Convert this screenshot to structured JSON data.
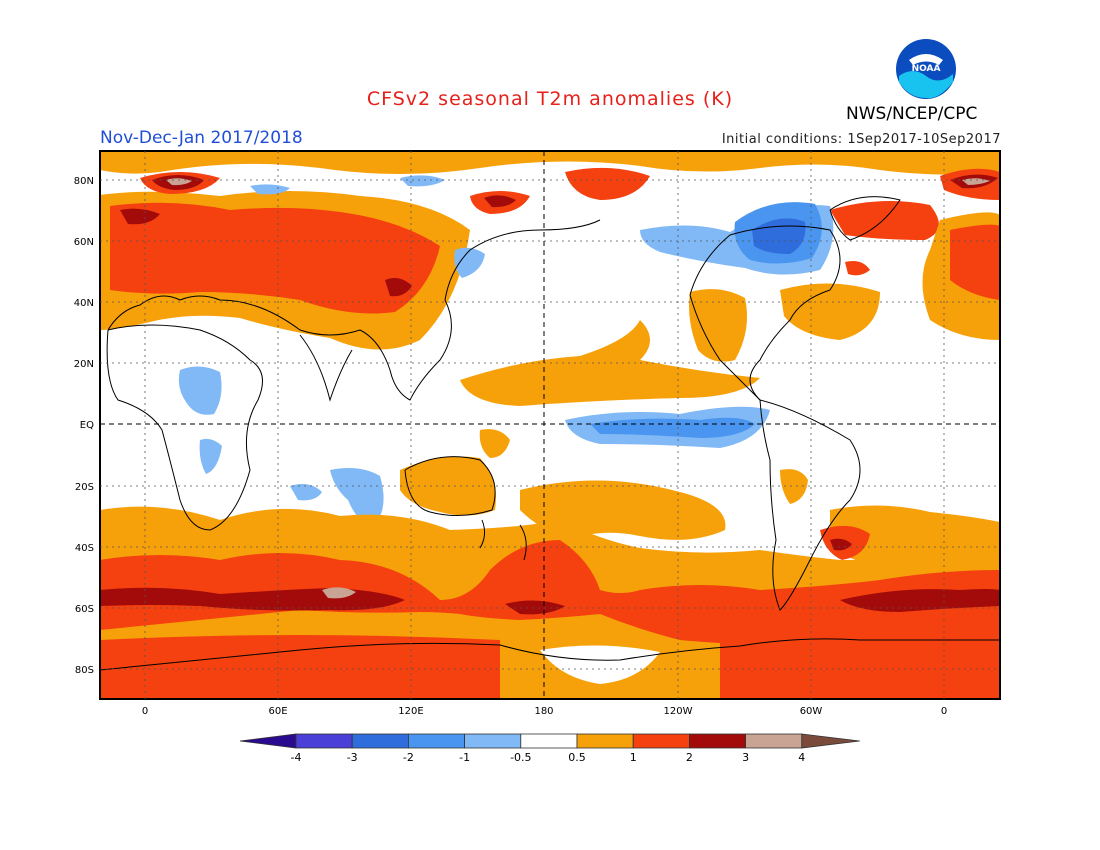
{
  "header": {
    "title": "CFSv2 seasonal T2m anomalies (K)",
    "agency": "NWS/NCEP/CPC",
    "period": "Nov-Dec-Jan 2017/2018",
    "initial_conditions": "Initial conditions: 1Sep2017-10Sep2017",
    "logo_text": "NOAA"
  },
  "map": {
    "lat_labels": [
      "80N",
      "60N",
      "40N",
      "20N",
      "EQ",
      "20S",
      "40S",
      "60S",
      "80S"
    ],
    "lon_labels": [
      "0",
      "60E",
      "120E",
      "180",
      "120W",
      "60W",
      "0"
    ],
    "colors": {
      "land_outline": "#000000",
      "neutral": "#ffffff"
    }
  },
  "legend": {
    "labels": [
      "-4",
      "-3",
      "-2",
      "-1",
      "-0.5",
      "0.5",
      "1",
      "2",
      "3",
      "4"
    ],
    "colors": [
      "#2a0a8f",
      "#4a3fd6",
      "#2f6ddc",
      "#4a95ef",
      "#80b9f5",
      "#ffffff",
      "#f7a10a",
      "#f4410f",
      "#a30a0a",
      "#c9a393",
      "#7a4b3a"
    ]
  }
}
